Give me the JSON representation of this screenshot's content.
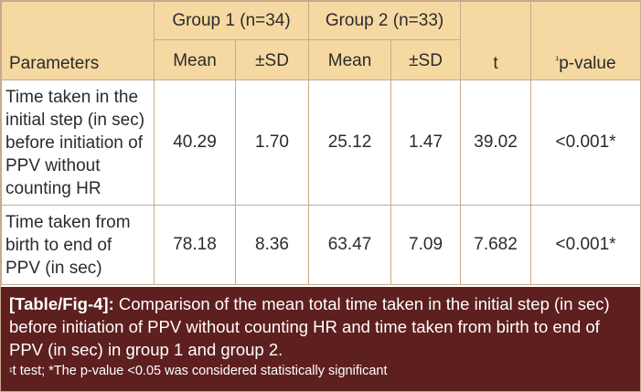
{
  "table": {
    "header": {
      "group1": "Group 1 (n=34)",
      "group2": "Group 2 (n=33)",
      "parameters": "Parameters",
      "mean1": "Mean",
      "sd1": "±SD",
      "mean2": "Mean",
      "sd2": "±SD",
      "t": "t",
      "pvalue_sup": "¹",
      "pvalue": "p-value"
    },
    "rows": [
      {
        "parameter": "Time taken in the initial step (in sec) before initiation of PPV without counting HR",
        "mean1": "40.29",
        "sd1": "1.70",
        "mean2": "25.12",
        "sd2": "1.47",
        "t": "39.02",
        "p": "<0.001*"
      },
      {
        "parameter": "Time taken from birth to end of PPV (in sec)",
        "mean1": "78.18",
        "sd1": "8.36",
        "mean2": "63.47",
        "sd2": "7.09",
        "t": "7.682",
        "p": "<0.001*"
      }
    ]
  },
  "caption": {
    "label": "[Table/Fig-4]:",
    "text": " Comparison of the mean total time taken in the initial step (in sec) before initiation of PPV without counting HR and time taken from birth to end of PPV (in sec) in group 1 and group 2.",
    "footnote_sup": "¹",
    "footnote": "t test; *The p-value <0.05 was considered statistically significant"
  },
  "colors": {
    "header_bg": "#f6d9a2",
    "border": "#c9a98a",
    "caption_bg": "#5e1f1f",
    "caption_text": "#ffffff"
  }
}
